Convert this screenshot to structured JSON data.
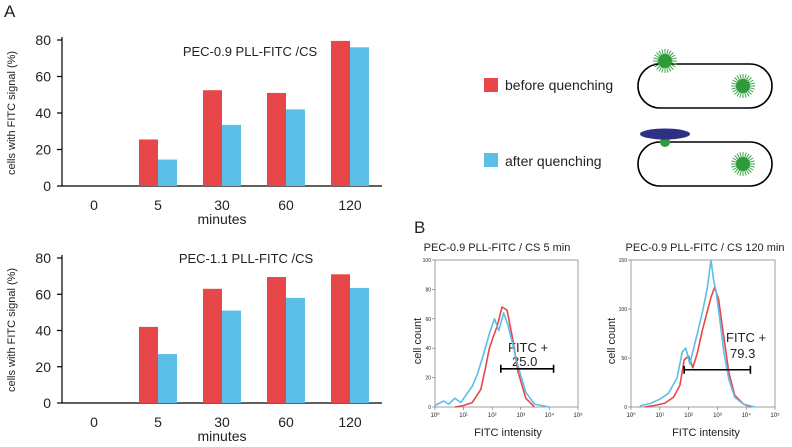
{
  "panel_labels": {
    "a": "A",
    "b": "B"
  },
  "colors": {
    "before": "#e8474a",
    "after": "#5bbfe8",
    "dot": "#2e9a3a",
    "ray": "#3aa64a",
    "quencher": "#2f2f86",
    "axis": "#000000"
  },
  "chart_data": [
    {
      "type": "bar",
      "title": "PEC-0.9 PLL-FITC /CS",
      "xlabel": "minutes",
      "ylabel": "cells with FITC signal (%)",
      "categories": [
        "0",
        "5",
        "30",
        "60",
        "120"
      ],
      "ylim": [
        0,
        80
      ],
      "yticks": [
        "0",
        "20",
        "40",
        "60",
        "80"
      ],
      "series": [
        {
          "name": "before quenching",
          "values": [
            0,
            25.5,
            52.5,
            51,
            79.5
          ]
        },
        {
          "name": "after quenching",
          "values": [
            0,
            14.5,
            33.5,
            42,
            76
          ]
        }
      ]
    },
    {
      "type": "bar",
      "title": "PEC-1.1 PLL-FITC /CS",
      "xlabel": "minutes",
      "ylabel": "cells with FITC signal (%)",
      "categories": [
        "0",
        "5",
        "30",
        "60",
        "120"
      ],
      "ylim": [
        0,
        80
      ],
      "yticks": [
        "0",
        "20",
        "40",
        "60",
        "80"
      ],
      "series": [
        {
          "name": "before quenching",
          "values": [
            0,
            42,
            63,
            69.5,
            71
          ]
        },
        {
          "name": "after quenching",
          "values": [
            0,
            27,
            51,
            58,
            63.5
          ]
        }
      ]
    },
    {
      "type": "line",
      "title": "PEC-0.9 PLL-FITC / CS 5 min",
      "xlabel": "FITC intensity",
      "ylabel": "cell count",
      "xscale": "log",
      "xlim": [
        1,
        100000
      ],
      "xticks": [
        "10⁰",
        "10¹",
        "10²",
        "10³",
        "10⁴",
        "10⁵"
      ],
      "ylim": [
        0,
        100
      ],
      "yticks": [
        "0",
        "20",
        "40",
        "60",
        "80",
        "100"
      ],
      "gate_label": "FITC +",
      "gate_value": "25.0",
      "gate_range": [
        200,
        14000
      ],
      "gate_y": 26,
      "series": [
        {
          "name": "before quenching",
          "x": [
            5,
            10,
            20,
            40,
            60,
            80,
            110,
            150,
            220,
            330,
            500,
            800,
            1500,
            3000
          ],
          "y": [
            0,
            1,
            3,
            12,
            28,
            40,
            48,
            55,
            68,
            66,
            48,
            24,
            6,
            0
          ]
        },
        {
          "name": "after quenching",
          "x": [
            1,
            2,
            3,
            5,
            8,
            12,
            20,
            30,
            50,
            80,
            120,
            170,
            250,
            350,
            500,
            800,
            1500,
            3000,
            10000
          ],
          "y": [
            1,
            4,
            2,
            6,
            3,
            8,
            14,
            22,
            36,
            50,
            60,
            52,
            64,
            56,
            44,
            28,
            10,
            2,
            0
          ]
        }
      ]
    },
    {
      "type": "line",
      "title": "PEC-0.9 PLL-FITC / CS 120 min",
      "xlabel": "FITC intensity",
      "ylabel": "cell count",
      "xscale": "log",
      "xlim": [
        1,
        100000
      ],
      "xticks": [
        "10⁰",
        "10¹",
        "10²",
        "10³",
        "10⁴",
        "10⁵"
      ],
      "ylim": [
        0,
        150
      ],
      "yticks": [
        "0",
        "50",
        "100",
        "150"
      ],
      "gate_label": "FITC +",
      "gate_value": "79.3",
      "gate_range": [
        70,
        14000
      ],
      "gate_y": 38,
      "series": [
        {
          "name": "before quenching",
          "x": [
            3,
            8,
            15,
            30,
            50,
            70,
            100,
            140,
            200,
            300,
            450,
            600,
            800,
            1100,
            1600,
            2500,
            4000,
            8000,
            15000
          ],
          "y": [
            0,
            2,
            4,
            10,
            22,
            48,
            52,
            40,
            55,
            78,
            98,
            112,
            122,
            110,
            75,
            35,
            12,
            3,
            0
          ]
        },
        {
          "name": "after quenching",
          "x": [
            2,
            5,
            10,
            20,
            40,
            60,
            80,
            110,
            150,
            220,
            320,
            450,
            600,
            750,
            900,
            1200,
            1700,
            2500,
            4000,
            8000,
            20000
          ],
          "y": [
            1,
            4,
            8,
            14,
            30,
            56,
            60,
            44,
            60,
            80,
            100,
            122,
            150,
            128,
            118,
            90,
            55,
            28,
            10,
            3,
            0
          ]
        }
      ]
    }
  ],
  "legend": {
    "before": "before quenching",
    "after": "after quenching"
  }
}
